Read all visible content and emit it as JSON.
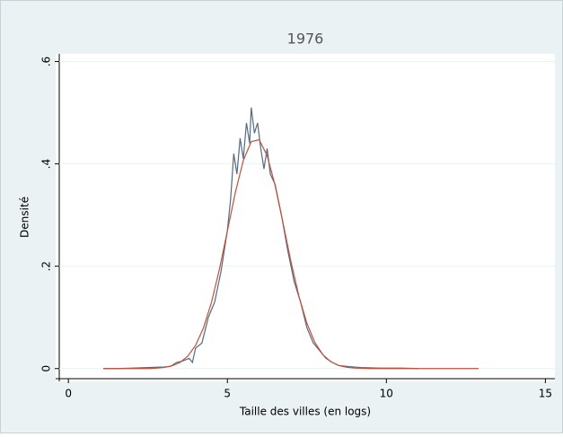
{
  "chart_data": {
    "type": "line",
    "title": "1976",
    "xlabel": "Taille des villes (en logs)",
    "ylabel": "Densité",
    "xlim": [
      -0.4,
      15.3
    ],
    "ylim": [
      -0.025,
      0.615
    ],
    "xticks": [
      0,
      5,
      10,
      15
    ],
    "yticks": [
      0,
      {
        "value": 0.2,
        "label": ".2"
      },
      {
        "value": 0.4,
        "label": ".4"
      },
      {
        "value": 0.6,
        "label": ".6"
      }
    ],
    "grid": true,
    "series": [
      {
        "color": "#566a80",
        "x": [
          1.1,
          1.5,
          2.0,
          2.5,
          3.0,
          3.2,
          3.4,
          3.6,
          3.8,
          3.9,
          4.0,
          4.2,
          4.4,
          4.6,
          4.8,
          5.0,
          5.1,
          5.2,
          5.3,
          5.4,
          5.5,
          5.6,
          5.7,
          5.75,
          5.85,
          5.95,
          6.05,
          6.15,
          6.25,
          6.35,
          6.5,
          6.7,
          6.9,
          7.1,
          7.3,
          7.5,
          7.7,
          7.9,
          8.1,
          8.3,
          8.5,
          8.8,
          9.2,
          9.8,
          10.5,
          11.0
        ],
        "values": [
          0,
          0,
          0.001,
          0.002,
          0.003,
          0.004,
          0.012,
          0.015,
          0.02,
          0.012,
          0.04,
          0.05,
          0.1,
          0.13,
          0.19,
          0.27,
          0.33,
          0.42,
          0.38,
          0.45,
          0.41,
          0.48,
          0.44,
          0.51,
          0.46,
          0.48,
          0.43,
          0.39,
          0.43,
          0.38,
          0.36,
          0.3,
          0.23,
          0.17,
          0.13,
          0.08,
          0.05,
          0.035,
          0.02,
          0.012,
          0.006,
          0.004,
          0.002,
          0.001,
          0.001,
          0
        ]
      },
      {
        "color": "#c0503c",
        "x": [
          1.1,
          2.5,
          2.75,
          3.0,
          3.25,
          3.5,
          3.75,
          4.0,
          4.25,
          4.5,
          4.75,
          5.0,
          5.25,
          5.5,
          5.75,
          6.0,
          6.25,
          6.5,
          6.75,
          7.0,
          7.25,
          7.5,
          7.75,
          8.0,
          8.25,
          8.5,
          8.75,
          9.0,
          9.5,
          12.9
        ],
        "values": [
          0,
          0,
          0.0008,
          0.0022,
          0.0052,
          0.0116,
          0.0239,
          0.0454,
          0.0798,
          0.1295,
          0.1942,
          0.269,
          0.344,
          0.4065,
          0.4436,
          0.4472,
          0.4163,
          0.358,
          0.2843,
          0.2086,
          0.1413,
          0.0885,
          0.0511,
          0.0273,
          0.0135,
          0.0061,
          0.0026,
          0.001,
          0,
          0
        ]
      }
    ]
  }
}
